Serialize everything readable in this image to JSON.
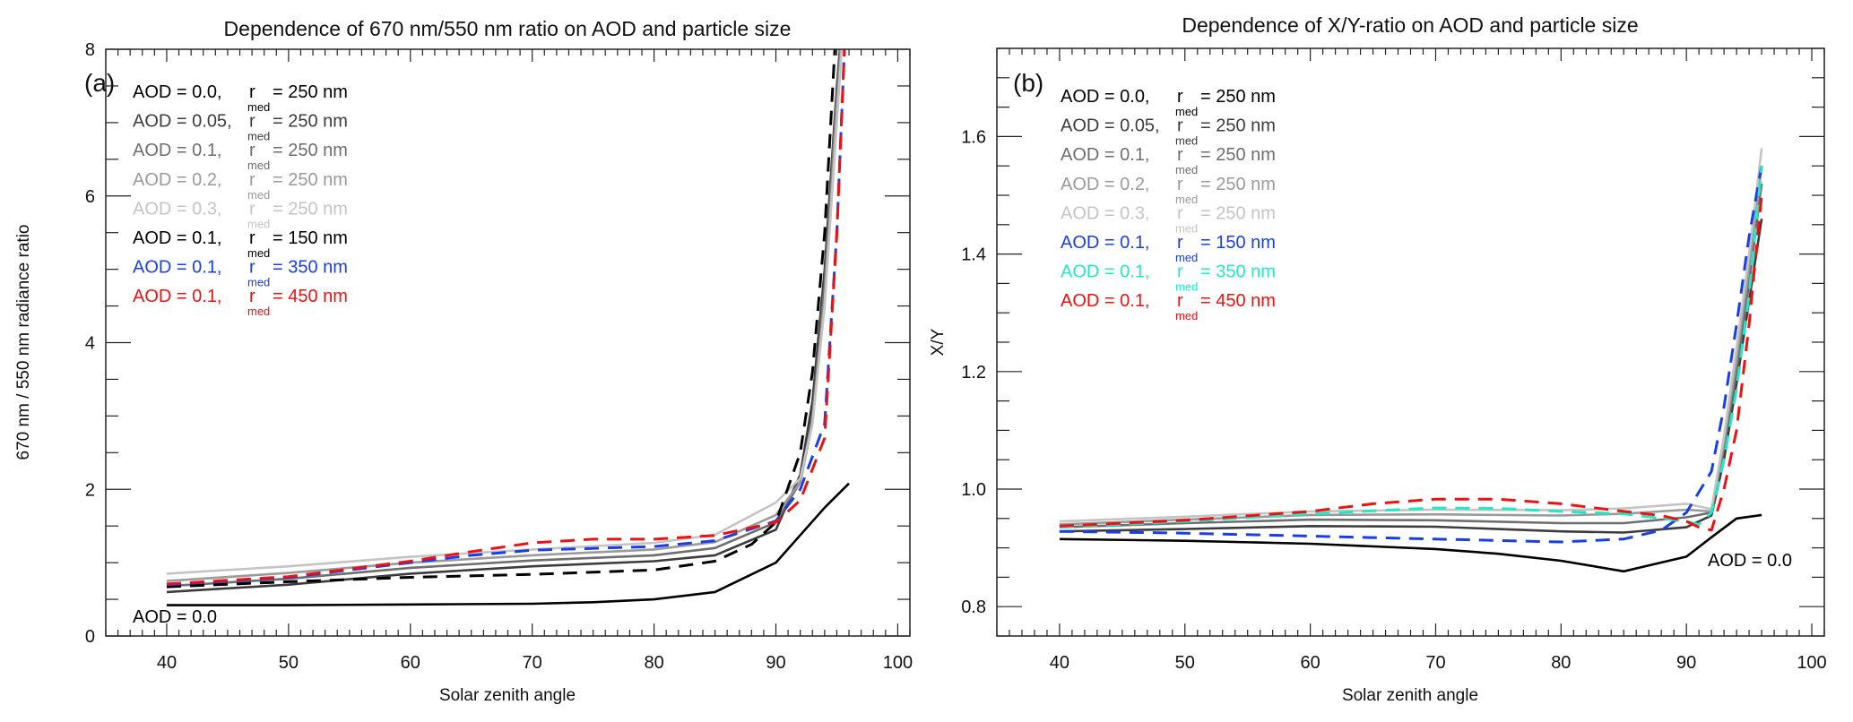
{
  "chart_data": [
    {
      "type": "line",
      "panel_label": "(a)",
      "title": "Dependence of 670 nm/550 nm ratio on AOD and particle size",
      "xlabel": "Solar zenith angle",
      "ylabel": "670 nm / 550 nm radiance ratio",
      "xlim": [
        35,
        101
      ],
      "ylim": [
        0,
        8
      ],
      "x_ticks": [
        40,
        50,
        60,
        70,
        80,
        90,
        100
      ],
      "y_ticks": [
        0,
        2,
        4,
        6,
        8
      ],
      "grid": false,
      "legend_placement": "top-left",
      "annotation": "AOD = 0.0",
      "series": [
        {
          "name": "AOD = 0.0, r_med = 250 nm",
          "aod": "0.0",
          "rmed": "250",
          "color": "#000000",
          "dash": false,
          "x": [
            40,
            50,
            60,
            70,
            75,
            80,
            85,
            90,
            94,
            96
          ],
          "y": [
            0.42,
            0.42,
            0.43,
            0.44,
            0.46,
            0.5,
            0.6,
            1.0,
            1.75,
            2.08
          ]
        },
        {
          "name": "AOD = 0.05, r_med = 250 nm",
          "aod": "0.05",
          "rmed": "250",
          "color": "#3c3c3c",
          "dash": false,
          "x": [
            40,
            50,
            60,
            70,
            80,
            85,
            90,
            92,
            93,
            94,
            95,
            96
          ],
          "y": [
            0.6,
            0.7,
            0.85,
            0.95,
            1.02,
            1.1,
            1.45,
            2.2,
            3.2,
            5.0,
            7.5,
            9.5
          ]
        },
        {
          "name": "AOD = 0.1, r_med = 250 nm",
          "aod": "0.1",
          "rmed": "250",
          "color": "#6e6e6e",
          "dash": false,
          "x": [
            40,
            50,
            60,
            70,
            80,
            85,
            90,
            92,
            93,
            94,
            95,
            96
          ],
          "y": [
            0.68,
            0.78,
            0.93,
            1.03,
            1.1,
            1.2,
            1.55,
            2.1,
            3.0,
            4.8,
            7.4,
            9.5
          ]
        },
        {
          "name": "AOD = 0.2, r_med = 250 nm",
          "aod": "0.2",
          "rmed": "250",
          "color": "#9a9a9a",
          "dash": false,
          "x": [
            40,
            50,
            60,
            70,
            80,
            85,
            90,
            92,
            93,
            94,
            95,
            96
          ],
          "y": [
            0.75,
            0.86,
            1.0,
            1.1,
            1.18,
            1.28,
            1.65,
            2.1,
            2.9,
            4.6,
            7.2,
            9.5
          ]
        },
        {
          "name": "AOD = 0.3, r_med = 250 nm",
          "aod": "0.3",
          "rmed": "250",
          "color": "#c4c4c4",
          "dash": false,
          "x": [
            40,
            50,
            60,
            70,
            80,
            85,
            90,
            92,
            93,
            94,
            95,
            96
          ],
          "y": [
            0.85,
            0.95,
            1.08,
            1.18,
            1.27,
            1.38,
            1.82,
            2.15,
            2.9,
            4.5,
            7.0,
            9.5
          ]
        },
        {
          "name": "AOD = 0.1, r_med = 150 nm",
          "aod": "0.1",
          "rmed": "150",
          "color": "#000000",
          "dash": true,
          "x": [
            40,
            50,
            60,
            70,
            80,
            85,
            88,
            90,
            92,
            93,
            94,
            95
          ],
          "y": [
            0.67,
            0.74,
            0.8,
            0.84,
            0.9,
            1.02,
            1.25,
            1.55,
            2.5,
            3.6,
            5.5,
            8.5
          ]
        },
        {
          "name": "AOD = 0.1, r_med = 350 nm",
          "aod": "0.1",
          "rmed": "350",
          "color": "#1a3ee6",
          "dash": true,
          "x": [
            40,
            50,
            60,
            65,
            70,
            80,
            85,
            90,
            92,
            94,
            95,
            96
          ],
          "y": [
            0.7,
            0.8,
            1.0,
            1.1,
            1.17,
            1.22,
            1.3,
            1.57,
            2.0,
            2.9,
            5.5,
            9.5
          ]
        },
        {
          "name": "AOD = 0.1, r_med = 450 nm",
          "aod": "0.1",
          "rmed": "450",
          "color": "#ee1111",
          "dash": true,
          "x": [
            40,
            50,
            60,
            65,
            70,
            75,
            80,
            85,
            90,
            92,
            94,
            95,
            96
          ],
          "y": [
            0.71,
            0.81,
            1.02,
            1.15,
            1.27,
            1.32,
            1.32,
            1.37,
            1.55,
            1.85,
            2.7,
            5.5,
            9.5
          ]
        }
      ]
    },
    {
      "type": "line",
      "panel_label": "(b)",
      "title": "Dependence of X/Y-ratio on AOD and particle size",
      "xlabel": "Solar zenith angle",
      "ylabel": "X/Y",
      "xlim": [
        35,
        101
      ],
      "ylim": [
        0.75,
        1.75
      ],
      "x_ticks": [
        40,
        50,
        60,
        70,
        80,
        90,
        100
      ],
      "y_ticks": [
        0.8,
        1.0,
        1.2,
        1.4,
        1.6
      ],
      "grid": false,
      "legend_placement": "top-left",
      "annotation": "AOD = 0.0",
      "series": [
        {
          "name": "AOD = 0.0, r_med = 250 nm",
          "aod": "0.0",
          "rmed": "250",
          "color": "#000000",
          "dash": false,
          "x": [
            40,
            50,
            60,
            70,
            75,
            80,
            85,
            90,
            92,
            94,
            96
          ],
          "y": [
            0.915,
            0.912,
            0.907,
            0.898,
            0.89,
            0.878,
            0.86,
            0.885,
            0.918,
            0.95,
            0.956
          ]
        },
        {
          "name": "AOD = 0.05, r_med = 250 nm",
          "aod": "0.05",
          "rmed": "250",
          "color": "#3c3c3c",
          "dash": false,
          "x": [
            40,
            50,
            60,
            70,
            80,
            85,
            90,
            92,
            93,
            94,
            95,
            96
          ],
          "y": [
            0.928,
            0.932,
            0.937,
            0.936,
            0.928,
            0.926,
            0.935,
            0.955,
            1.05,
            1.18,
            1.32,
            1.46
          ]
        },
        {
          "name": "AOD = 0.1, r_med = 250 nm",
          "aod": "0.1",
          "rmed": "250",
          "color": "#6e6e6e",
          "dash": false,
          "x": [
            40,
            50,
            60,
            70,
            80,
            85,
            90,
            92,
            93,
            94,
            95,
            96
          ],
          "y": [
            0.935,
            0.942,
            0.948,
            0.947,
            0.942,
            0.942,
            0.952,
            0.96,
            1.07,
            1.2,
            1.35,
            1.52
          ]
        },
        {
          "name": "AOD = 0.2, r_med = 250 nm",
          "aod": "0.2",
          "rmed": "250",
          "color": "#9a9a9a",
          "dash": false,
          "x": [
            40,
            50,
            60,
            70,
            80,
            85,
            90,
            92,
            93,
            94,
            95,
            96
          ],
          "y": [
            0.94,
            0.948,
            0.956,
            0.957,
            0.955,
            0.958,
            0.965,
            0.962,
            1.08,
            1.22,
            1.38,
            1.55
          ]
        },
        {
          "name": "AOD = 0.3, r_med = 250 nm",
          "aod": "0.3",
          "rmed": "250",
          "color": "#c4c4c4",
          "dash": false,
          "x": [
            40,
            50,
            60,
            70,
            80,
            85,
            90,
            92,
            93,
            94,
            95,
            96
          ],
          "y": [
            0.945,
            0.953,
            0.962,
            0.965,
            0.964,
            0.967,
            0.975,
            0.966,
            1.09,
            1.24,
            1.4,
            1.58
          ]
        },
        {
          "name": "AOD = 0.1, r_med = 150 nm",
          "aod": "0.1",
          "rmed": "150",
          "color": "#1a3ee6",
          "dash": true,
          "x": [
            40,
            50,
            60,
            70,
            80,
            85,
            88,
            90,
            92,
            93,
            94,
            95,
            96
          ],
          "y": [
            0.928,
            0.925,
            0.92,
            0.915,
            0.91,
            0.915,
            0.93,
            0.96,
            1.03,
            1.14,
            1.28,
            1.43,
            1.55
          ]
        },
        {
          "name": "AOD = 0.1, r_med = 350 nm",
          "aod": "0.1",
          "rmed": "350",
          "color": "#22e8c4",
          "dash": true,
          "x": [
            40,
            50,
            60,
            70,
            75,
            80,
            85,
            90,
            91,
            92,
            93,
            94,
            95,
            96
          ],
          "y": [
            0.935,
            0.945,
            0.958,
            0.968,
            0.967,
            0.962,
            0.958,
            0.945,
            0.94,
            0.96,
            1.05,
            1.17,
            1.33,
            1.55
          ]
        },
        {
          "name": "AOD = 0.1, r_med = 450 nm",
          "aod": "0.1",
          "rmed": "450",
          "color": "#ee1111",
          "dash": true,
          "x": [
            40,
            50,
            60,
            65,
            70,
            75,
            80,
            85,
            88,
            90,
            91,
            92,
            93,
            94,
            95,
            96
          ],
          "y": [
            0.937,
            0.947,
            0.962,
            0.975,
            0.983,
            0.983,
            0.975,
            0.962,
            0.955,
            0.945,
            0.935,
            0.93,
            1.0,
            1.1,
            1.28,
            1.5
          ]
        }
      ]
    }
  ]
}
